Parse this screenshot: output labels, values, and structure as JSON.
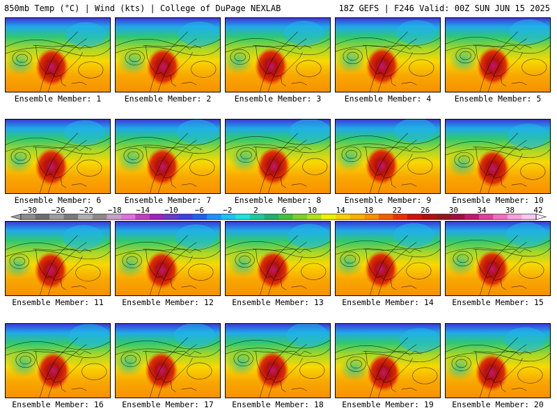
{
  "header": {
    "left": "850mb Temp (°C) | Wind (kts) | College of DuPage NEXLAB",
    "right": "18Z GEFS | F246 Valid: 00Z SUN JUN 15 2025"
  },
  "panels": [
    {
      "label": "Ensemble Member: 1"
    },
    {
      "label": "Ensemble Member: 2"
    },
    {
      "label": "Ensemble Member: 3"
    },
    {
      "label": "Ensemble Member: 4"
    },
    {
      "label": "Ensemble Member: 5"
    },
    {
      "label": "Ensemble Member: 6"
    },
    {
      "label": "Ensemble Member: 7"
    },
    {
      "label": "Ensemble Member: 8"
    },
    {
      "label": "Ensemble Member: 9"
    },
    {
      "label": "Ensemble Member: 10"
    },
    {
      "label": "Ensemble Member: 11"
    },
    {
      "label": "Ensemble Member: 12"
    },
    {
      "label": "Ensemble Member: 13"
    },
    {
      "label": "Ensemble Member: 14"
    },
    {
      "label": "Ensemble Member: 15"
    },
    {
      "label": "Ensemble Member: 16"
    },
    {
      "label": "Ensemble Member: 17"
    },
    {
      "label": "Ensemble Member: 18"
    },
    {
      "label": "Ensemble Member: 19"
    },
    {
      "label": "Ensemble Member: 20"
    }
  ],
  "colorbar": {
    "ticks": [
      "−30",
      "−26",
      "−22",
      "−18",
      "−14",
      "−10",
      "−6",
      "−2",
      "2",
      "6",
      "10",
      "14",
      "18",
      "22",
      "26",
      "30",
      "34",
      "38",
      "42"
    ],
    "colors": [
      "#8c8c8c",
      "#6e6e6e",
      "#9e9e9e",
      "#7a7a7a",
      "#b0b0b0",
      "#8a8a8a",
      "#c8a0c8",
      "#e070e0",
      "#c040c0",
      "#a020c0",
      "#6a3ac8",
      "#4040e0",
      "#2060f0",
      "#2090f8",
      "#20c0f8",
      "#20e0e0",
      "#20c8a0",
      "#20b070",
      "#40c040",
      "#78d030",
      "#b0e020",
      "#f0f000",
      "#f8d000",
      "#f8b000",
      "#f89000",
      "#f06000",
      "#e83000",
      "#d01010",
      "#b01010",
      "#901818",
      "#a01040",
      "#c01870",
      "#e040a0",
      "#f070c0",
      "#f8a0e0",
      "#f8c8f0"
    ]
  }
}
